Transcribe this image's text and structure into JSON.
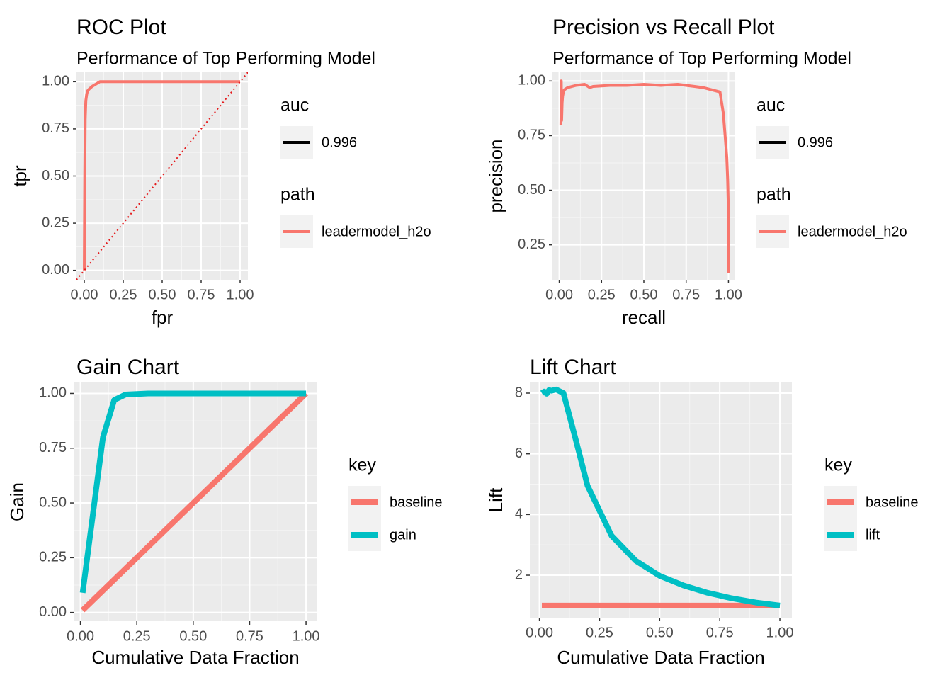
{
  "chart_data": [
    {
      "id": "roc",
      "type": "line",
      "title": "ROC Plot",
      "subtitle": "Performance of Top Performing Model",
      "xlabel": "fpr",
      "ylabel": "tpr",
      "xlim": [
        -0.05,
        1.05
      ],
      "ylim": [
        -0.05,
        1.05
      ],
      "xticks": [
        0,
        0.25,
        0.5,
        0.75,
        1
      ],
      "yticks": [
        0,
        0.25,
        0.5,
        0.75,
        1
      ],
      "xtick_labels": [
        "0.00",
        "0.25",
        "0.50",
        "0.75",
        "1.00"
      ],
      "ytick_labels": [
        "0.00",
        "0.25",
        "0.50",
        "0.75",
        "1.00"
      ],
      "grid": true,
      "series": [
        {
          "name": "leadermodel_h2o",
          "color": "#F8766D",
          "x": [
            0,
            0.003,
            0.006,
            0.01,
            0.015,
            0.02,
            0.03,
            0.05,
            0.07,
            0.1,
            0.2,
            0.5,
            1.0
          ],
          "y": [
            0,
            0.5,
            0.8,
            0.9,
            0.93,
            0.95,
            0.96,
            0.975,
            0.985,
            1.0,
            1.0,
            1.0,
            1.0
          ]
        }
      ],
      "reference_line": {
        "x": [
          0,
          1
        ],
        "y": [
          0,
          1
        ],
        "color": "#E41A1C",
        "style": "dotted"
      },
      "legend": [
        {
          "title": "auc",
          "entries": [
            {
              "label": "0.996",
              "color": "#000000"
            }
          ]
        },
        {
          "title": "path",
          "entries": [
            {
              "label": "leadermodel_h2o",
              "color": "#F8766D"
            }
          ]
        }
      ],
      "legend_position": "right"
    },
    {
      "id": "pr",
      "type": "line",
      "title": "Precision vs Recall Plot",
      "subtitle": "Performance of Top Performing Model",
      "xlabel": "recall",
      "ylabel": "precision",
      "xlim": [
        -0.04,
        1.04
      ],
      "ylim": [
        0.09,
        1.04
      ],
      "xticks": [
        0,
        0.25,
        0.5,
        0.75,
        1
      ],
      "yticks": [
        0.25,
        0.5,
        0.75,
        1
      ],
      "xtick_labels": [
        "0.00",
        "0.25",
        "0.50",
        "0.75",
        "1.00"
      ],
      "ytick_labels": [
        "0.25",
        "0.50",
        "0.75",
        "1.00"
      ],
      "grid": true,
      "series": [
        {
          "name": "leadermodel_h2o",
          "color": "#F8766D",
          "x": [
            0.01,
            0.012,
            0.014,
            0.017,
            0.02,
            0.025,
            0.03,
            0.05,
            0.1,
            0.15,
            0.18,
            0.2,
            0.3,
            0.4,
            0.5,
            0.6,
            0.7,
            0.75,
            0.8,
            0.85,
            0.9,
            0.95,
            0.97,
            0.98,
            0.99,
            0.995,
            1.0,
            1.0
          ],
          "y": [
            0.8,
            1.0,
            0.82,
            0.9,
            0.93,
            0.95,
            0.96,
            0.97,
            0.98,
            0.985,
            0.97,
            0.975,
            0.98,
            0.98,
            0.985,
            0.98,
            0.985,
            0.98,
            0.975,
            0.97,
            0.96,
            0.95,
            0.85,
            0.75,
            0.65,
            0.55,
            0.4,
            0.12
          ]
        }
      ],
      "legend": [
        {
          "title": "auc",
          "entries": [
            {
              "label": "0.996",
              "color": "#000000"
            }
          ]
        },
        {
          "title": "path",
          "entries": [
            {
              "label": "leadermodel_h2o",
              "color": "#F8766D"
            }
          ]
        }
      ],
      "legend_position": "right"
    },
    {
      "id": "gain",
      "type": "line",
      "title": "Gain Chart",
      "subtitle": "",
      "xlabel": "Cumulative Data Fraction",
      "ylabel": "Gain",
      "xlim": [
        -0.03,
        1.05
      ],
      "ylim": [
        -0.04,
        1.05
      ],
      "xticks": [
        0,
        0.25,
        0.5,
        0.75,
        1
      ],
      "yticks": [
        0,
        0.25,
        0.5,
        0.75,
        1
      ],
      "xtick_labels": [
        "0.00",
        "0.25",
        "0.50",
        "0.75",
        "1.00"
      ],
      "ytick_labels": [
        "0.00",
        "0.25",
        "0.50",
        "0.75",
        "1.00"
      ],
      "grid": true,
      "series": [
        {
          "name": "baseline",
          "color": "#F8766D",
          "x": [
            0.01,
            1.0
          ],
          "y": [
            0.01,
            1.0
          ]
        },
        {
          "name": "gain",
          "color": "#00BFC4",
          "x": [
            0.01,
            0.1,
            0.15,
            0.2,
            0.3,
            0.4,
            0.5,
            0.6,
            0.7,
            0.8,
            0.9,
            1.0
          ],
          "y": [
            0.09,
            0.8,
            0.97,
            0.995,
            1.0,
            1.0,
            1.0,
            1.0,
            1.0,
            1.0,
            1.0,
            1.0
          ]
        }
      ],
      "legend": [
        {
          "title": "key",
          "entries": [
            {
              "label": "baseline",
              "color": "#F8766D"
            },
            {
              "label": "gain",
              "color": "#00BFC4"
            }
          ]
        }
      ],
      "legend_position": "right"
    },
    {
      "id": "lift",
      "type": "line",
      "title": "Lift Chart",
      "subtitle": "",
      "xlabel": "Cumulative Data Fraction",
      "ylabel": "Lift",
      "xlim": [
        -0.04,
        1.05
      ],
      "ylim": [
        0.6,
        8.35
      ],
      "xticks": [
        0,
        0.25,
        0.5,
        0.75,
        1
      ],
      "yticks": [
        2,
        4,
        6,
        8
      ],
      "xtick_labels": [
        "0.00",
        "0.25",
        "0.50",
        "0.75",
        "1.00"
      ],
      "ytick_labels": [
        "2",
        "4",
        "6",
        "8"
      ],
      "grid": true,
      "series": [
        {
          "name": "baseline",
          "color": "#F8766D",
          "x": [
            0.01,
            1.0
          ],
          "y": [
            1.0,
            1.0
          ]
        },
        {
          "name": "lift",
          "color": "#00BFC4",
          "x": [
            0.01,
            0.02,
            0.03,
            0.04,
            0.05,
            0.07,
            0.1,
            0.15,
            0.2,
            0.3,
            0.4,
            0.5,
            0.6,
            0.7,
            0.8,
            0.9,
            1.0
          ],
          "y": [
            8.0,
            8.05,
            7.98,
            8.1,
            8.08,
            8.12,
            8.0,
            6.5,
            4.95,
            3.3,
            2.48,
            1.98,
            1.66,
            1.42,
            1.24,
            1.1,
            1.0
          ]
        }
      ],
      "legend": [
        {
          "title": "key",
          "entries": [
            {
              "label": "baseline",
              "color": "#F8766D"
            },
            {
              "label": "lift",
              "color": "#00BFC4"
            }
          ]
        }
      ],
      "legend_position": "right"
    }
  ]
}
